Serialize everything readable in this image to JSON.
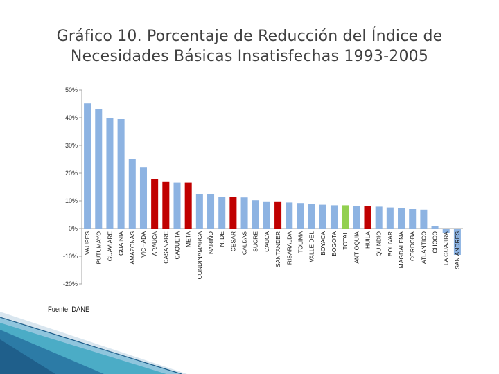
{
  "title": {
    "line1": "Gráfico 10. Porcentaje de Reducción del Índice de",
    "line2": "Necesidades Básicas Insatisfechas 1993-2005"
  },
  "source": "Fuente: DANE",
  "colors": {
    "default": "#8db3e2",
    "highlight": "#c00000",
    "total": "#92d050",
    "axis": "#a6a6a6",
    "decor_dark": "#1f5f8b",
    "decor_light": "#4bacc6"
  },
  "chart_data": {
    "type": "bar",
    "title": "",
    "xlabel": "",
    "ylabel": "",
    "ylim": [
      -20,
      50
    ],
    "yticks": [
      50,
      40,
      30,
      20,
      10,
      0,
      -10,
      -20
    ],
    "ytick_labels": [
      "50%",
      "40%",
      "30%",
      "20%",
      "10%",
      "0%",
      "-10%",
      "-20%"
    ],
    "categories": [
      "VAUPES",
      "PUTUMAYO",
      "GUAVIARE",
      "GUAINIA",
      "AMAZONAS",
      "VICHADA",
      "ARAUCA",
      "CASANARE",
      "CAQUETA",
      "META",
      "CUNDINAMARCA",
      "NARIÑO",
      "N. DE",
      "CESAR",
      "CALDAS",
      "SUCRE",
      "CAUCA",
      "SANTANDER",
      "RISARALDA",
      "TOLIMA",
      "VALLE DEL",
      "BOYACA",
      "BOGOTA",
      "TOTAL",
      "ANTIOQUIA",
      "HUILA",
      "QUINDIO",
      "BOLIVAR",
      "MAGDALENA",
      "CORDOBA",
      "ATLANTICO",
      "CHOCO",
      "LA GUAJIRA",
      "SAN ANDRES"
    ],
    "values": [
      45.2,
      43,
      40,
      39.5,
      25,
      22.2,
      18,
      16.8,
      16.6,
      16.6,
      12.5,
      12.5,
      11.5,
      11.5,
      11.2,
      10.2,
      9.8,
      9.8,
      9.4,
      9.2,
      9.0,
      8.6,
      8.4,
      8.4,
      8.0,
      8.0,
      7.9,
      7.6,
      7.3,
      7.0,
      6.8,
      1.0,
      -1.5,
      -9.5
    ],
    "highlight": [
      "ARAUCA",
      "CASANARE",
      "META",
      "CESAR",
      "SANTANDER",
      "HUILA"
    ],
    "total_category": "TOTAL"
  }
}
